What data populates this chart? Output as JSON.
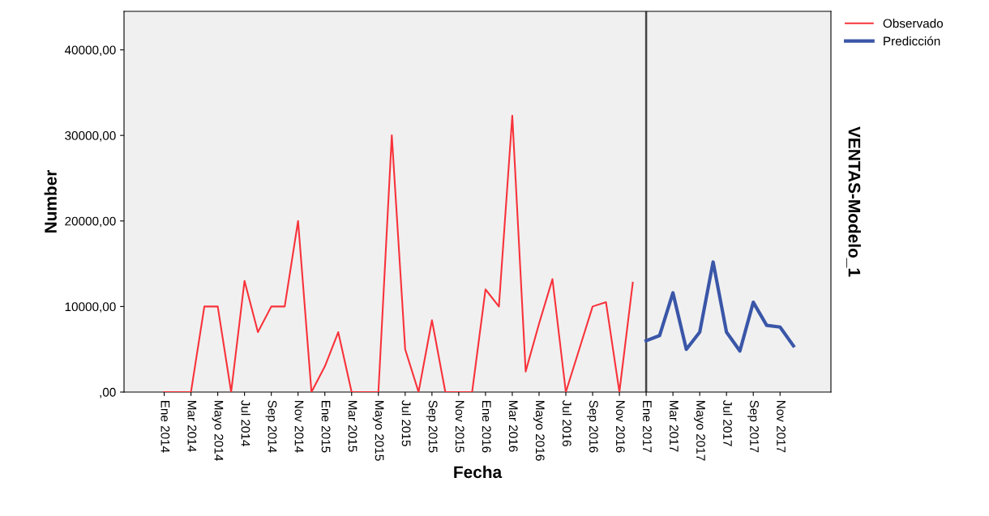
{
  "chart_data": {
    "type": "line",
    "xlabel": "Fecha",
    "ylabel": "Number",
    "y2label": "VENTAS-Modelo_1",
    "categories": [
      "Ene 2014",
      null,
      "Mar 2014",
      null,
      "Mayo 2014",
      null,
      "Jul 2014",
      null,
      "Sep 2014",
      null,
      "Nov 2014",
      null,
      "Ene 2015",
      null,
      "Mar 2015",
      null,
      "Mayo 2015",
      null,
      "Jul 2015",
      null,
      "Sep 2015",
      null,
      "Nov 2015",
      null,
      "Ene 2016",
      null,
      "Mar 2016",
      null,
      "Mayo 2016",
      null,
      "Jul 2016",
      null,
      "Sep 2016",
      null,
      "Nov 2016",
      null,
      "Ene 2017",
      null,
      "Mar 2017",
      null,
      "Mayo 2017",
      null,
      "Jul 2017",
      null,
      "Sep 2017",
      null,
      "Nov 2017",
      null
    ],
    "series": [
      {
        "name": "Observado",
        "color": "#f8323a",
        "values": [
          0,
          0,
          0,
          10000,
          10000,
          0,
          13000,
          7000,
          10000,
          10000,
          20000,
          0,
          3000,
          7000,
          0,
          0,
          0,
          30000,
          5000,
          0,
          8400,
          0,
          0,
          0,
          12000,
          10000,
          32300,
          2400,
          8000,
          13200,
          0,
          5000,
          10000,
          10500,
          0,
          12800,
          null,
          null,
          null,
          null,
          null,
          null,
          null,
          null,
          null,
          null,
          null,
          null
        ]
      },
      {
        "name": "Predicción",
        "color": "#3a56a8",
        "values": [
          null,
          null,
          null,
          null,
          null,
          null,
          null,
          null,
          null,
          null,
          null,
          null,
          null,
          null,
          null,
          null,
          null,
          null,
          null,
          null,
          null,
          null,
          null,
          null,
          null,
          null,
          null,
          null,
          null,
          null,
          null,
          null,
          null,
          null,
          null,
          null,
          6000,
          6600,
          11600,
          5000,
          7000,
          15200,
          7000,
          4800,
          10500,
          7800,
          7600,
          5400
        ]
      }
    ],
    "ylim": [
      0,
      44500
    ],
    "yticks": [
      {
        "value": 0,
        "label": ",00"
      },
      {
        "value": 10000,
        "label": "10000,00"
      },
      {
        "value": 20000,
        "label": "20000,00"
      },
      {
        "value": 30000,
        "label": "30000,00"
      },
      {
        "value": 40000,
        "label": "40000,00"
      }
    ],
    "ref_lines": [
      {
        "axis": "x",
        "value": "Ene 2017",
        "color": "#444444"
      }
    ],
    "legend": "top right",
    "grid": false
  }
}
